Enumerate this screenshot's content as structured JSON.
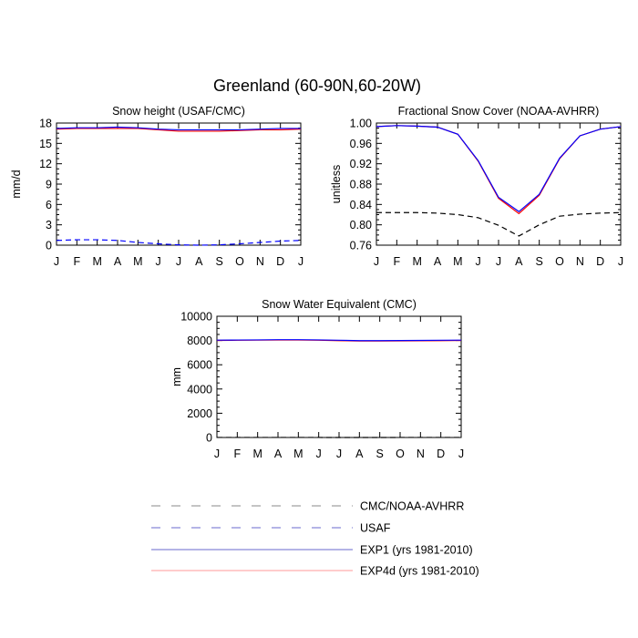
{
  "figure_title": "Greenland (60-90N,60-20W)",
  "colors": {
    "obs_cmc": "#000000",
    "obs_usaf": "#0000ff",
    "exp1": "#0000ff",
    "exp4d": "#ff0000"
  },
  "legend": [
    {
      "label": "CMC/NOAA-AVHRR",
      "color": "#000000",
      "style": "dashed"
    },
    {
      "label": "USAF",
      "color": "#0000ff",
      "style": "dashed"
    },
    {
      "label": "EXP1 (yrs 1981-2010)",
      "color": "#0000ff",
      "style": "solid"
    },
    {
      "label": "EXP4d (yrs 1981-2010)",
      "color": "#ff0000",
      "style": "solid"
    }
  ],
  "chart_data": [
    {
      "type": "line",
      "title": "Snow height (USAF/CMC)",
      "xlabel": "",
      "ylabel": "mm/d",
      "categories": [
        "J",
        "F",
        "M",
        "A",
        "M",
        "J",
        "J",
        "A",
        "S",
        "O",
        "N",
        "D",
        "J"
      ],
      "ylim": [
        0,
        18
      ],
      "yticks": [
        0,
        3,
        6,
        9,
        12,
        15,
        18
      ],
      "ytick_labels": [
        "0",
        "3",
        "6",
        "9",
        "12",
        "15",
        "18"
      ],
      "series": [
        {
          "name": "EXP4d (yrs 1981-2010)",
          "color": "#ff0000",
          "style": "solid",
          "values": [
            17.1,
            17.2,
            17.2,
            17.2,
            17.2,
            17.0,
            16.8,
            16.8,
            16.8,
            16.9,
            17.0,
            17.0,
            17.1
          ]
        },
        {
          "name": "EXP1 (yrs 1981-2010)",
          "color": "#0000ff",
          "style": "solid",
          "values": [
            17.2,
            17.3,
            17.3,
            17.4,
            17.3,
            17.1,
            17.0,
            17.0,
            17.0,
            17.0,
            17.1,
            17.2,
            17.2
          ]
        },
        {
          "name": "USAF",
          "color": "#0000ff",
          "style": "dashed",
          "values": [
            0.7,
            0.8,
            0.8,
            0.7,
            0.4,
            0.2,
            0.05,
            0.0,
            0.05,
            0.2,
            0.4,
            0.6,
            0.7
          ]
        }
      ]
    },
    {
      "type": "line",
      "title": "Fractional Snow Cover (NOAA-AVHRR)",
      "xlabel": "",
      "ylabel": "unitless",
      "categories": [
        "J",
        "F",
        "M",
        "A",
        "M",
        "J",
        "J",
        "A",
        "S",
        "O",
        "N",
        "D",
        "J"
      ],
      "ylim": [
        0.76,
        1.0
      ],
      "yticks": [
        0.76,
        0.8,
        0.84,
        0.88,
        0.92,
        0.96,
        1.0
      ],
      "ytick_labels": [
        "0.76",
        "0.80",
        "0.84",
        "0.88",
        "0.92",
        "0.96",
        "1.00"
      ],
      "series": [
        {
          "name": "EXP4d (yrs 1981-2010)",
          "color": "#ff0000",
          "style": "solid",
          "values": [
            0.993,
            0.995,
            0.994,
            0.992,
            0.978,
            0.925,
            0.852,
            0.822,
            0.858,
            0.93,
            0.975,
            0.988,
            0.993
          ]
        },
        {
          "name": "EXP1 (yrs 1981-2010)",
          "color": "#0000ff",
          "style": "solid",
          "values": [
            0.993,
            0.995,
            0.994,
            0.992,
            0.978,
            0.926,
            0.854,
            0.826,
            0.86,
            0.931,
            0.975,
            0.988,
            0.993
          ]
        },
        {
          "name": "CMC/NOAA-AVHRR",
          "color": "#000000",
          "style": "dashed",
          "values": [
            0.824,
            0.824,
            0.824,
            0.823,
            0.82,
            0.814,
            0.799,
            0.778,
            0.8,
            0.817,
            0.821,
            0.823,
            0.824
          ]
        }
      ]
    },
    {
      "type": "line",
      "title": "Snow Water Equivalent (CMC)",
      "xlabel": "",
      "ylabel": "mm",
      "categories": [
        "J",
        "F",
        "M",
        "A",
        "M",
        "J",
        "J",
        "A",
        "S",
        "O",
        "N",
        "D",
        "J"
      ],
      "ylim": [
        0,
        10000
      ],
      "yticks": [
        0,
        2000,
        4000,
        6000,
        8000,
        10000
      ],
      "ytick_labels": [
        "0",
        "2000",
        "4000",
        "6000",
        "8000",
        "10000"
      ],
      "series": [
        {
          "name": "EXP4d (yrs 1981-2010)",
          "color": "#ff0000",
          "style": "solid",
          "values": [
            8010,
            8020,
            8030,
            8040,
            8040,
            8020,
            7990,
            7960,
            7960,
            7970,
            7980,
            7990,
            8010
          ]
        },
        {
          "name": "EXP1 (yrs 1981-2010)",
          "color": "#0000ff",
          "style": "solid",
          "values": [
            8030,
            8040,
            8050,
            8070,
            8070,
            8050,
            8020,
            7990,
            7990,
            8000,
            8010,
            8020,
            8030
          ]
        },
        {
          "name": "CMC/NOAA-AVHRR",
          "color": "#000000",
          "style": "dashed",
          "values": [
            5,
            5,
            5,
            5,
            5,
            3,
            1,
            0,
            1,
            3,
            4,
            5,
            5
          ]
        }
      ]
    }
  ]
}
